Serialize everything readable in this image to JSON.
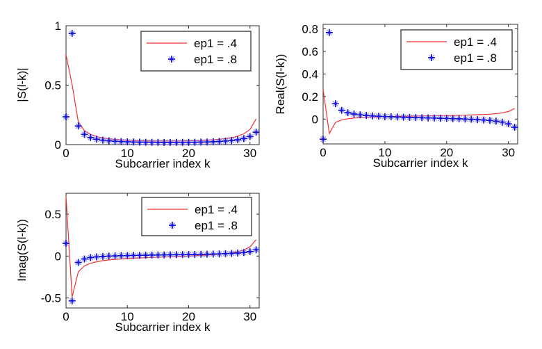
{
  "figure": {
    "background": "#ffffff",
    "legend_labels": [
      "ep1 = .4",
      "ep1 = .8"
    ]
  },
  "chart_data": {
    "type": "line",
    "x": [
      0,
      1,
      2,
      3,
      4,
      5,
      6,
      7,
      8,
      9,
      10,
      11,
      12,
      13,
      14,
      15,
      16,
      17,
      18,
      19,
      20,
      21,
      22,
      23,
      24,
      25,
      26,
      27,
      28,
      29,
      30,
      31
    ],
    "xlabel_shared": "Subcarrier index k",
    "legend_position": "upper right",
    "grid": false,
    "subplots": [
      {
        "name": "magnitude",
        "ylabel": "|S(l-k)|",
        "xlabel": "Subcarrier index k",
        "xlim": [
          0,
          31.5
        ],
        "ylim": [
          0,
          1
        ],
        "xticks": [
          {
            "v": 0,
            "label": "0"
          },
          {
            "v": 10,
            "label": "10"
          },
          {
            "v": 20,
            "label": "20"
          },
          {
            "v": 30,
            "label": "30"
          }
        ],
        "yticks": [
          {
            "v": 0,
            "label": "0"
          },
          {
            "v": 0.5,
            "label": "0.5"
          },
          {
            "v": 1,
            "label": "1"
          }
        ],
        "series": [
          {
            "name": "ep1 = .4",
            "type": "line",
            "color": "#f03030",
            "values": [
              0.757,
              0.5048,
              0.19,
              0.1177,
              0.0859,
              0.0681,
              0.0569,
              0.0492,
              0.0438,
              0.0398,
              0.0367,
              0.0344,
              0.0327,
              0.0315,
              0.0306,
              0.03,
              0.0297,
              0.0298,
              0.0301,
              0.0307,
              0.0317,
              0.033,
              0.0349,
              0.0373,
              0.0405,
              0.0448,
              0.0506,
              0.0588,
              0.071,
              0.0907,
              0.1273,
              0.2169
            ]
          },
          {
            "name": "ep1 = .8",
            "type": "asterisk",
            "color": "#0f0fd8",
            "color2": "#7575f2",
            "values": [
              0.2341,
              0.9356,
              0.1563,
              0.0857,
              0.0594,
              0.0458,
              0.0376,
              0.0321,
              0.0283,
              0.0255,
              0.0234,
              0.0218,
              0.0206,
              0.0197,
              0.0191,
              0.0187,
              0.0184,
              0.0184,
              0.0185,
              0.0188,
              0.0193,
              0.02,
              0.0211,
              0.0224,
              0.0242,
              0.0265,
              0.0297,
              0.0341,
              0.0405,
              0.0504,
              0.0677,
              0.1045
            ]
          }
        ]
      },
      {
        "name": "real",
        "ylabel": "Real(S(l-k))",
        "xlabel": "Subcarrier index k",
        "xlim": [
          0,
          31.5
        ],
        "ylim": [
          -0.22,
          0.84
        ],
        "xticks": [
          {
            "v": 0,
            "label": "0"
          },
          {
            "v": 10,
            "label": "10"
          },
          {
            "v": 20,
            "label": "20"
          },
          {
            "v": 30,
            "label": "30"
          }
        ],
        "yticks": [
          {
            "v": 0,
            "label": "0"
          },
          {
            "v": 0.2,
            "label": "0.2"
          },
          {
            "v": 0.4,
            "label": "0.4"
          },
          {
            "v": 0.6,
            "label": "0.6"
          },
          {
            "v": 0.8,
            "label": "0.8"
          }
        ],
        "series": [
          {
            "name": "ep1 = .4",
            "type": "line",
            "color": "#f03030",
            "values": [
              0.262,
              -0.1275,
              -0.0297,
              -0.0069,
              0.0034,
              0.0093,
              0.0133,
              0.0161,
              0.0183,
              0.0201,
              0.0216,
              0.0229,
              0.024,
              0.0251,
              0.0261,
              0.027,
              0.0279,
              0.0288,
              0.0297,
              0.0307,
              0.0317,
              0.0327,
              0.0339,
              0.0352,
              0.0368,
              0.0386,
              0.0409,
              0.0439,
              0.0482,
              0.0548,
              0.0665,
              0.0947
            ]
          },
          {
            "name": "ep1 = .8",
            "type": "asterisk",
            "color": "#0f0fd8",
            "color2": "#7575f2",
            "values": [
              -0.178,
              0.7675,
              0.1364,
              0.0785,
              0.0565,
              0.0448,
              0.0373,
              0.0321,
              0.0282,
              0.0251,
              0.0225,
              0.0203,
              0.0184,
              0.0166,
              0.015,
              0.0135,
              0.012,
              0.0105,
              0.009,
              0.0075,
              0.006,
              0.0043,
              0.0025,
              0.0004,
              -0.0019,
              -0.0047,
              -0.0081,
              -0.0124,
              -0.0184,
              -0.0272,
              -0.0419,
              -0.0724
            ]
          }
        ]
      },
      {
        "name": "imag",
        "ylabel": "Imag(S(l-k))",
        "xlabel": "Subcarrier index k",
        "xlim": [
          0,
          31.5
        ],
        "ylim": [
          -0.62,
          0.75
        ],
        "xticks": [
          {
            "v": 0,
            "label": "0"
          },
          {
            "v": 10,
            "label": "10"
          },
          {
            "v": 20,
            "label": "20"
          },
          {
            "v": 30,
            "label": "30"
          }
        ],
        "yticks": [
          {
            "v": -0.5,
            "label": "-0.5"
          },
          {
            "v": 0,
            "label": "0"
          },
          {
            "v": 0.5,
            "label": "0.5"
          }
        ],
        "series": [
          {
            "name": "ep1 = .4",
            "type": "line",
            "color": "#f03030",
            "values": [
              0.7102,
              -0.4885,
              -0.1876,
              -0.1175,
              -0.0858,
              -0.0675,
              -0.0553,
              -0.0465,
              -0.0398,
              -0.0343,
              -0.0297,
              -0.0258,
              -0.0222,
              -0.019,
              -0.016,
              -0.0131,
              -0.0103,
              -0.0075,
              -0.0047,
              -0.0018,
              0.0012,
              0.0045,
              0.0081,
              0.0122,
              0.0169,
              0.0226,
              0.0297,
              0.039,
              0.0521,
              0.0723,
              0.1086,
              0.1952
            ]
          },
          {
            "name": "ep1 = .8",
            "type": "asterisk",
            "color": "#0f0fd8",
            "color2": "#7575f2",
            "values": [
              0.152,
              -0.5351,
              -0.0764,
              -0.0344,
              -0.0184,
              -0.0098,
              -0.0044,
              -0.0006,
              0.0022,
              0.0045,
              0.0063,
              0.008,
              0.0094,
              0.0106,
              0.0118,
              0.0129,
              0.014,
              0.0151,
              0.0161,
              0.0172,
              0.0184,
              0.0196,
              0.0209,
              0.0224,
              0.0241,
              0.0261,
              0.0286,
              0.0317,
              0.0361,
              0.0425,
              0.0531,
              0.0753
            ]
          }
        ]
      }
    ]
  }
}
